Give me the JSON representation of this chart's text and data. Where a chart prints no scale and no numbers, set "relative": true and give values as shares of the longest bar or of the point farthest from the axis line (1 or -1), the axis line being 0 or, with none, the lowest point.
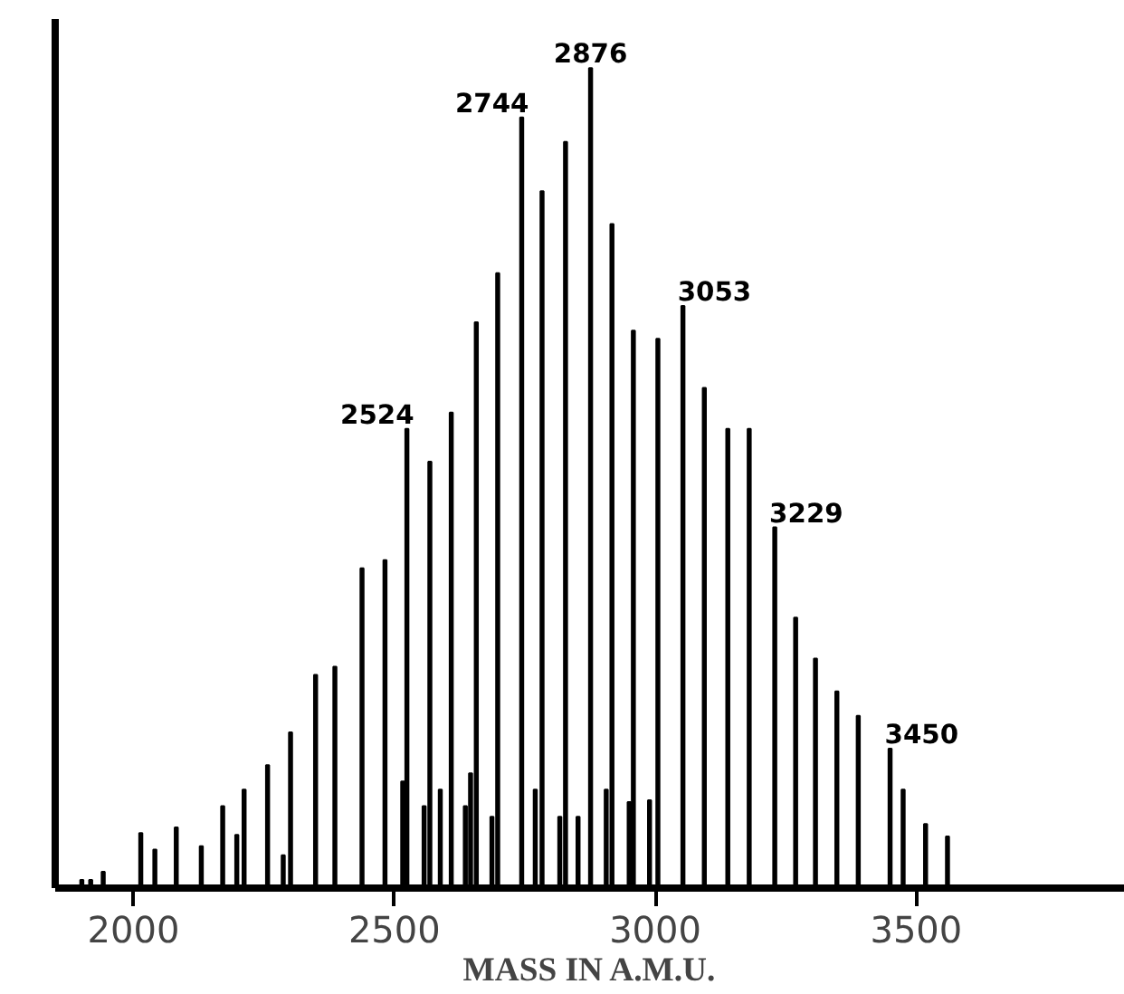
{
  "chart_data": {
    "type": "bar",
    "relative": true,
    "xlabel": "MASS IN A.M.U.",
    "xlim": [
      1850,
      3900
    ],
    "xticks": [
      2000,
      2500,
      3000,
      3500
    ],
    "grid": false,
    "color": "#000000",
    "x": [
      1901,
      1918,
      1942,
      2014,
      2041,
      2082,
      2130,
      2171,
      2198,
      2212,
      2257,
      2287,
      2301,
      2349,
      2386,
      2438,
      2482,
      2516,
      2524,
      2557,
      2568,
      2588,
      2609,
      2636,
      2646,
      2657,
      2687,
      2698,
      2744,
      2770,
      2783,
      2817,
      2828,
      2852,
      2876,
      2906,
      2917,
      2950,
      2958,
      2989,
      3005,
      3053,
      3094,
      3139,
      3180,
      3229,
      3269,
      3307,
      3348,
      3389,
      3450,
      3475,
      3518,
      3560
    ],
    "values": [
      0.01,
      0.01,
      0.02,
      0.067,
      0.047,
      0.074,
      0.051,
      0.1,
      0.065,
      0.12,
      0.15,
      0.04,
      0.19,
      0.26,
      0.27,
      0.39,
      0.4,
      0.13,
      0.56,
      0.1,
      0.52,
      0.12,
      0.58,
      0.1,
      0.14,
      0.69,
      0.087,
      0.75,
      0.94,
      0.12,
      0.85,
      0.087,
      0.91,
      0.087,
      1.0,
      0.12,
      0.81,
      0.105,
      0.68,
      0.107,
      0.67,
      0.71,
      0.61,
      0.56,
      0.56,
      0.44,
      0.33,
      0.28,
      0.24,
      0.21,
      0.17,
      0.12,
      0.078,
      0.063
    ],
    "annotations": [
      {
        "text": "2524",
        "x": 2524,
        "y": 0.56
      },
      {
        "text": "2744",
        "x": 2744,
        "y": 0.94
      },
      {
        "text": "2876",
        "x": 2876,
        "y": 1.0
      },
      {
        "text": "3053",
        "x": 3053,
        "y": 0.71
      },
      {
        "text": "3229",
        "x": 3229,
        "y": 0.44
      },
      {
        "text": "3450",
        "x": 3450,
        "y": 0.17
      }
    ]
  }
}
